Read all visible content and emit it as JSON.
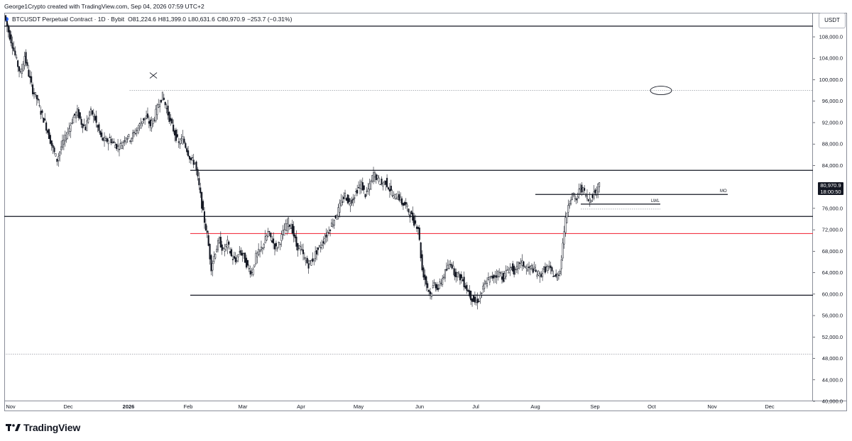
{
  "header": {
    "credit": "George1Crypto created with TradingView.com, Sep 04, 2026 07:59 UTC+2",
    "symbol": "BTCUSDT Perpetual Contract · 1D · Bybit",
    "open": "O81,224.6",
    "high": "H81,399.0",
    "low": "L80,631.6",
    "close": "C80,970.9",
    "change": "−253.7 (−0.31%)"
  },
  "currency": "USDT",
  "last_price": {
    "price": "80,970.9",
    "countdown": "18:00:50",
    "color": "#131722"
  },
  "brand": {
    "name": "TradingView"
  },
  "colors": {
    "candle": "#131722",
    "support_red": "#f23645",
    "level": "#131722",
    "dotted": "#9598a1"
  },
  "chart_data": {
    "type": "candlestick",
    "ylim": [
      40000,
      112500
    ],
    "yticks": [
      {
        "value": 108000,
        "label": "108,000.0"
      },
      {
        "value": 104000,
        "label": "104,000.0"
      },
      {
        "value": 100000,
        "label": "100,000.0"
      },
      {
        "value": 96000,
        "label": "96,000.0"
      },
      {
        "value": 92000,
        "label": "92,000.0"
      },
      {
        "value": 88000,
        "label": "88,000.0"
      },
      {
        "value": 84000,
        "label": "84,000.0"
      },
      {
        "value": 76000,
        "label": "76,000.0"
      },
      {
        "value": 72000,
        "label": "72,000.0"
      },
      {
        "value": 68000,
        "label": "68,000.0"
      },
      {
        "value": 64000,
        "label": "64,000.0"
      },
      {
        "value": 60000,
        "label": "60,000.0"
      },
      {
        "value": 56000,
        "label": "56,000.0"
      },
      {
        "value": 52000,
        "label": "52,000.0"
      },
      {
        "value": 48000,
        "label": "48,000.0"
      },
      {
        "value": 44000,
        "label": "44,000.0"
      },
      {
        "value": 40000,
        "label": "40,000.0"
      }
    ],
    "xticks": [
      "Nov",
      "Dec",
      "2026",
      "Feb",
      "Mar",
      "Apr",
      "May",
      "Jun",
      "Jul",
      "Aug",
      "Sep",
      "Oct",
      "Nov",
      "Dec"
    ],
    "xtick_bold": "2026",
    "price_path": [
      [
        0,
        112000
      ],
      [
        3,
        109000
      ],
      [
        6,
        106500
      ],
      [
        9,
        103500
      ],
      [
        12,
        101000
      ],
      [
        15,
        104500
      ],
      [
        18,
        101000
      ],
      [
        21,
        98000
      ],
      [
        24,
        96500
      ],
      [
        27,
        94000
      ],
      [
        30,
        92000
      ],
      [
        33,
        89500
      ],
      [
        36,
        87000
      ],
      [
        39,
        85000
      ],
      [
        42,
        87500
      ],
      [
        45,
        89000
      ],
      [
        48,
        91000
      ],
      [
        51,
        93000
      ],
      [
        54,
        94000
      ],
      [
        57,
        92000
      ],
      [
        60,
        91000
      ],
      [
        63,
        94000
      ],
      [
        66,
        93500
      ],
      [
        69,
        91000
      ],
      [
        72,
        89000
      ],
      [
        75,
        88500
      ],
      [
        78,
        89000
      ],
      [
        81,
        88000
      ],
      [
        84,
        87500
      ],
      [
        87,
        88000
      ],
      [
        90,
        89500
      ],
      [
        93,
        89000
      ],
      [
        96,
        90000
      ],
      [
        99,
        91000
      ],
      [
        102,
        92500
      ],
      [
        105,
        93000
      ],
      [
        108,
        91500
      ],
      [
        111,
        93000
      ],
      [
        114,
        95500
      ],
      [
        117,
        97000
      ],
      [
        120,
        94500
      ],
      [
        123,
        92000
      ],
      [
        126,
        90000
      ],
      [
        129,
        88000
      ],
      [
        132,
        89000
      ],
      [
        135,
        87000
      ],
      [
        138,
        85000
      ],
      [
        141,
        84500
      ],
      [
        144,
        80000
      ],
      [
        147,
        75000
      ],
      [
        150,
        71000
      ],
      [
        153,
        65000
      ],
      [
        156,
        68000
      ],
      [
        159,
        70000
      ],
      [
        162,
        68000
      ],
      [
        165,
        69500
      ],
      [
        168,
        67000
      ],
      [
        171,
        66000
      ],
      [
        174,
        68000
      ],
      [
        177,
        67000
      ],
      [
        180,
        65000
      ],
      [
        183,
        64000
      ],
      [
        186,
        67000
      ],
      [
        189,
        68000
      ],
      [
        192,
        69500
      ],
      [
        195,
        71500
      ],
      [
        198,
        70000
      ],
      [
        201,
        68500
      ],
      [
        204,
        70000
      ],
      [
        207,
        72000
      ],
      [
        210,
        73500
      ],
      [
        213,
        72000
      ],
      [
        216,
        69000
      ],
      [
        219,
        68500
      ],
      [
        222,
        66500
      ],
      [
        225,
        65500
      ],
      [
        228,
        66500
      ],
      [
        231,
        68000
      ],
      [
        234,
        69000
      ],
      [
        237,
        70500
      ],
      [
        240,
        72000
      ],
      [
        243,
        73500
      ],
      [
        246,
        75000
      ],
      [
        249,
        77000
      ],
      [
        252,
        78500
      ],
      [
        255,
        77000
      ],
      [
        258,
        78000
      ],
      [
        261,
        79500
      ],
      [
        264,
        80500
      ],
      [
        267,
        78500
      ],
      [
        270,
        80000
      ],
      [
        273,
        82500
      ],
      [
        276,
        81500
      ],
      [
        279,
        80500
      ],
      [
        282,
        81000
      ],
      [
        285,
        79500
      ],
      [
        288,
        78000
      ],
      [
        291,
        78500
      ],
      [
        294,
        77000
      ],
      [
        297,
        76500
      ],
      [
        300,
        75000
      ],
      [
        303,
        73500
      ],
      [
        306,
        72500
      ],
      [
        309,
        64500
      ],
      [
        312,
        62000
      ],
      [
        315,
        60000
      ],
      [
        318,
        62000
      ],
      [
        321,
        61000
      ],
      [
        324,
        63000
      ],
      [
        327,
        64500
      ],
      [
        330,
        66000
      ],
      [
        333,
        64000
      ],
      [
        336,
        63500
      ],
      [
        339,
        62500
      ],
      [
        342,
        61000
      ],
      [
        345,
        59500
      ],
      [
        348,
        58500
      ],
      [
        351,
        59000
      ],
      [
        354,
        61000
      ],
      [
        357,
        62500
      ],
      [
        360,
        63000
      ],
      [
        363,
        63500
      ],
      [
        366,
        64000
      ],
      [
        369,
        63000
      ],
      [
        372,
        64500
      ],
      [
        375,
        65000
      ],
      [
        378,
        64000
      ],
      [
        381,
        66000
      ],
      [
        384,
        65500
      ],
      [
        387,
        64500
      ],
      [
        390,
        65000
      ],
      [
        393,
        64000
      ],
      [
        396,
        63500
      ],
      [
        399,
        64500
      ],
      [
        402,
        65000
      ],
      [
        405,
        64000
      ],
      [
        408,
        63000
      ],
      [
        411,
        64500
      ],
      [
        414,
        72000
      ],
      [
        417,
        77000
      ],
      [
        420,
        78500
      ],
      [
        423,
        77500
      ],
      [
        426,
        80000
      ],
      [
        429,
        79000
      ],
      [
        432,
        77500
      ],
      [
        435,
        78500
      ],
      [
        438,
        79500
      ],
      [
        440,
        80971
      ]
    ],
    "horizontal_levels": [
      {
        "name": "upper-resistance",
        "value": 110000,
        "style": "solid",
        "color": "#131722",
        "from": 0.0,
        "to": 1.0
      },
      {
        "name": "range-high",
        "value": 83100,
        "style": "solid",
        "color": "#131722",
        "from": 0.23,
        "to": 1.0
      },
      {
        "name": "mid-support",
        "value": 74500,
        "style": "solid",
        "color": "#131722",
        "from": 0.0,
        "to": 1.0
      },
      {
        "name": "red-support",
        "value": 71300,
        "style": "solid",
        "color": "#f23645",
        "from": 0.23,
        "to": 1.0
      },
      {
        "name": "range-low",
        "value": 59800,
        "style": "solid",
        "color": "#131722",
        "from": 0.23,
        "to": 1.0
      },
      {
        "name": "dotted-high",
        "value": 98000,
        "style": "dotted",
        "color": "#9598a1",
        "from": 0.155,
        "to": 1.0
      },
      {
        "name": "dotted-low",
        "value": 48800,
        "style": "dotted",
        "color": "#9598a1",
        "from": 0.0,
        "to": 1.0
      }
    ],
    "annotations": [
      {
        "text": "MO",
        "value": 78600
      },
      {
        "text": "LWL",
        "value": 76800
      }
    ]
  }
}
